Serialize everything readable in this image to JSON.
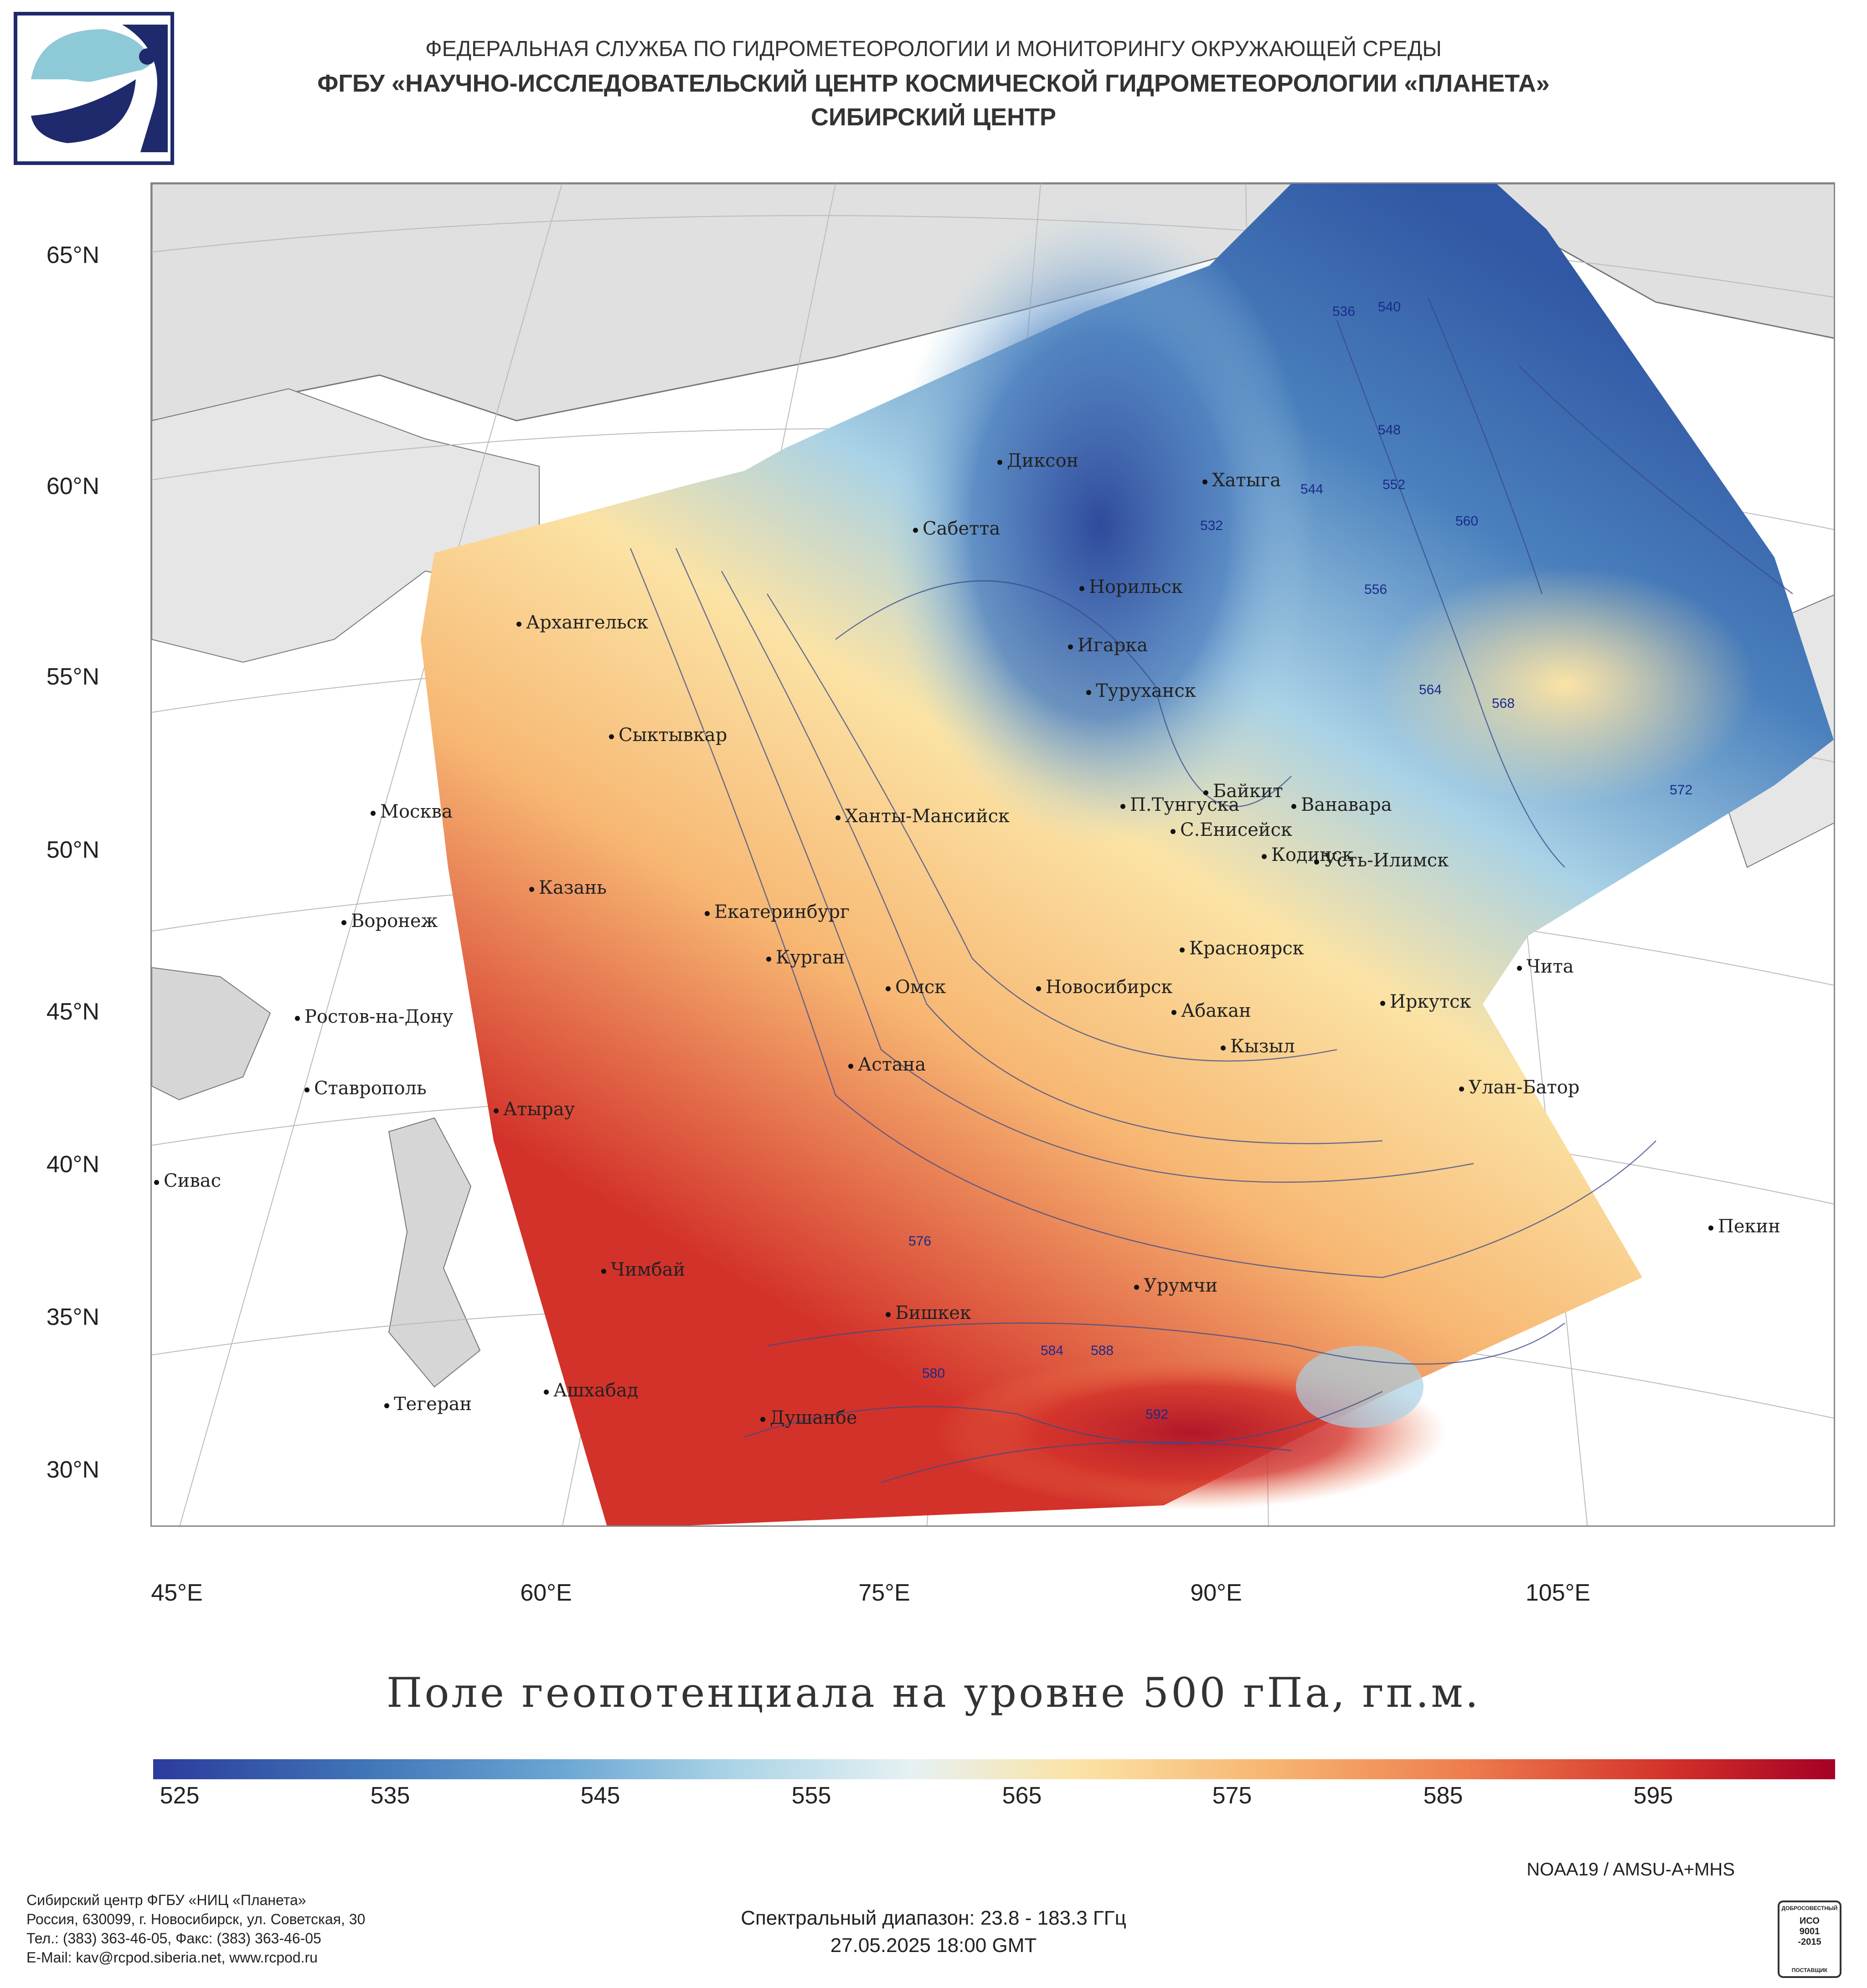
{
  "header": {
    "line1": "ФЕДЕРАЛЬНАЯ СЛУЖБА ПО ГИДРОМЕТЕОРОЛОГИИ И МОНИТОРИНГУ ОКРУЖАЮЩЕЙ СРЕДЫ",
    "line2": "ФГБУ «НАУЧНО-ИССЛЕДОВАТЕЛЬСКИЙ ЦЕНТР КОСМИЧЕСКОЙ ГИДРОМЕТЕОРОЛОГИИ «ПЛАНЕТА»",
    "line3": "СИБИРСКИЙ ЦЕНТР"
  },
  "logo_icon": "planeta-logo-icon",
  "lat_labels": [
    "65°N",
    "60°N",
    "55°N",
    "50°N",
    "45°N",
    "40°N",
    "35°N",
    "30°N"
  ],
  "lon_labels": [
    "45°E",
    "60°E",
    "75°E",
    "90°E",
    "105°E"
  ],
  "cities": [
    "Диксон",
    "Хатыга",
    "Сабетта",
    "Норильск",
    "Архангельск",
    "Игарка",
    "Туруханск",
    "Сыктывкар",
    "Байкит",
    "П.Тунгуска",
    "Ванавара",
    "Москва",
    "Ханты-Мансийск",
    "С.Енисейск",
    "Кодинск",
    "Усть-Илимск",
    "Казань",
    "Екатеринбург",
    "Воронеж",
    "Красноярск",
    "Курган",
    "Чита",
    "Омск",
    "Новосибирск",
    "Ростов-на-Дону",
    "Абакан",
    "Иркутск",
    "Кызыл",
    "Ставрополь",
    "Астана",
    "Улан-Батор",
    "Атырау",
    "Сивас",
    "Пекин",
    "Чимбай",
    "Урумчи",
    "Бишкек",
    "Ашхабад",
    "Тегеран",
    "Душанбе"
  ],
  "contour_labels": [
    "536",
    "540",
    "548",
    "544",
    "552",
    "560",
    "532",
    "556",
    "564",
    "568",
    "572",
    "576",
    "580",
    "584",
    "588",
    "592"
  ],
  "title": "Поле геопотенциала на уровне 500 гПа, гп.м.",
  "colorbar": {
    "ticks": [
      "525",
      "535",
      "545",
      "555",
      "565",
      "575",
      "585",
      "595"
    ],
    "colors": [
      "#2b3b9c",
      "#3f72b6",
      "#6aa5d3",
      "#a9d2e6",
      "#e6f1f3",
      "#fbe3a5",
      "#f7b773",
      "#ee7d4e",
      "#d3322a",
      "#a50026"
    ]
  },
  "footer": {
    "satellite": "NOAA19 / AMSU-A+MHS",
    "spectral": "Спектральный диапазон: 23.8 - 183.3 ГГц",
    "datetime": "27.05.2025 18:00 GMT",
    "address": [
      "Сибирский центр ФГБУ «НИЦ «Планета»",
      "Россия, 630099, г. Новосибирск, ул. Советская, 30",
      "Тел.: (383) 363-46-05, Факс: (383) 363-46-05",
      "E-Mail: kav@rcpod.siberia.net, www.rcpod.ru"
    ],
    "iso_badge": {
      "line1": "ДОБРОСОВЕСТНЫЙ",
      "line2": "ИСО",
      "line3": "9001",
      "line4": "-2015",
      "line5": "ПОСТАВЩИК"
    }
  }
}
